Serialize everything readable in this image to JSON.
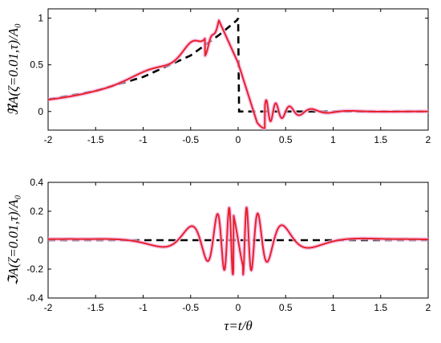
{
  "chart_data": [
    {
      "type": "line",
      "ylabel": "ℜA(ζ=0.01,τ)/A₀",
      "xlim": [
        -2,
        2
      ],
      "ylim": [
        -0.2,
        1.1
      ],
      "xticks": [
        -2,
        -1.5,
        -1,
        -0.5,
        0,
        0.5,
        1,
        1.5,
        2
      ],
      "xtick_labels": [
        "-2",
        "-1.5",
        "-1",
        "-0.5",
        "0",
        "0.5",
        "1",
        "1.5",
        "2"
      ],
      "yticks": [
        0,
        0.5,
        1
      ],
      "ytick_labels": [
        "0",
        "0.5",
        "1"
      ],
      "grid": false,
      "series": [
        {
          "style": "dashed",
          "color": "#000000",
          "x": [
            -2,
            -1.5,
            -1,
            -0.5,
            -0.2,
            -0.01,
            0,
            0.01,
            2
          ],
          "y": [
            0.13,
            0.22,
            0.37,
            0.6,
            0.82,
            0.98,
            1.0,
            0,
            0
          ]
        },
        {
          "style": "solid",
          "color": "#e8222a",
          "x": [
            -2,
            -1.5,
            -1,
            -0.5,
            -0.3,
            -0.2,
            -0.1,
            0,
            0.1,
            0.2,
            0.25,
            0.3,
            0.35,
            0.45,
            0.55,
            0.65,
            0.75,
            1,
            1.5,
            2
          ],
          "y": [
            0.13,
            0.22,
            0.37,
            0.6,
            0.8,
            0.97,
            0.85,
            0.52,
            0.15,
            -0.12,
            -0.18,
            -0.05,
            0.1,
            -0.05,
            0.05,
            -0.03,
            0.02,
            0,
            0,
            0
          ]
        }
      ]
    },
    {
      "type": "line",
      "ylabel": "ℑA(ζ=0.01,τ)/A₀",
      "xlabel": "τ=t/θ",
      "xlim": [
        -2,
        2
      ],
      "ylim": [
        -0.4,
        0.4
      ],
      "xticks": [
        -2,
        -1.5,
        -1,
        -0.5,
        0,
        0.5,
        1,
        1.5,
        2
      ],
      "xtick_labels": [
        "-2",
        "-1.5",
        "-1",
        "-0.5",
        "0",
        "0.5",
        "1",
        "1.5",
        "2"
      ],
      "yticks": [
        -0.4,
        -0.2,
        0,
        0.2,
        0.4
      ],
      "ytick_labels": [
        "-0.4",
        "-0.2",
        "0",
        "0.2",
        "0.4"
      ],
      "grid": false,
      "series": [
        {
          "style": "dashed",
          "color": "#000000",
          "x": [
            -2,
            2
          ],
          "y": [
            0,
            0
          ]
        },
        {
          "style": "solid",
          "color": "#e8222a",
          "x": [
            -2,
            -1.5,
            -1,
            -0.5,
            -0.3,
            -0.2,
            -0.1,
            0,
            0.1,
            0.2,
            0.3,
            0.5,
            1,
            1.5,
            2
          ],
          "y": [
            0,
            0.01,
            0.02,
            0.05,
            -0.1,
            0.12,
            0.25,
            0.0,
            -0.24,
            0.1,
            0.13,
            -0.06,
            0.02,
            0.01,
            0
          ]
        }
      ]
    }
  ]
}
